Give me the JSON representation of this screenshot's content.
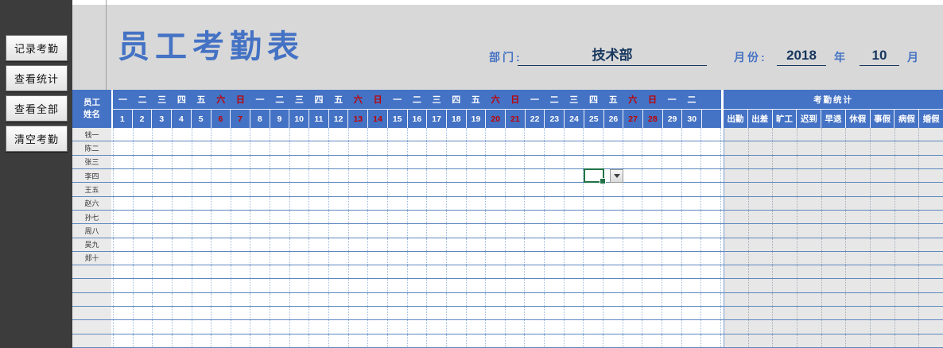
{
  "sidebar": {
    "buttons": [
      {
        "label": "记录考勤"
      },
      {
        "label": "查看统计"
      },
      {
        "label": "查看全部"
      },
      {
        "label": "清空考勤"
      }
    ]
  },
  "header": {
    "title": "员工考勤表",
    "department_label": "部门:",
    "department_value": "技术部",
    "month_label": "月份:",
    "year_value": "2018",
    "year_suffix": "年",
    "month_value": "10",
    "month_suffix": "月"
  },
  "table": {
    "name_header": "员工\n姓名",
    "stats_header": "考勤统计",
    "stat_columns": [
      "出勤",
      "出差",
      "旷工",
      "迟到",
      "早退",
      "休假",
      "事假",
      "病假",
      "婚假"
    ],
    "days": [
      {
        "d": 1,
        "w": "一",
        "weekend": false
      },
      {
        "d": 2,
        "w": "二",
        "weekend": false
      },
      {
        "d": 3,
        "w": "三",
        "weekend": false
      },
      {
        "d": 4,
        "w": "四",
        "weekend": false
      },
      {
        "d": 5,
        "w": "五",
        "weekend": false
      },
      {
        "d": 6,
        "w": "六",
        "weekend": true
      },
      {
        "d": 7,
        "w": "日",
        "weekend": true
      },
      {
        "d": 8,
        "w": "一",
        "weekend": false
      },
      {
        "d": 9,
        "w": "二",
        "weekend": false
      },
      {
        "d": 10,
        "w": "三",
        "weekend": false
      },
      {
        "d": 11,
        "w": "四",
        "weekend": false
      },
      {
        "d": 12,
        "w": "五",
        "weekend": false
      },
      {
        "d": 13,
        "w": "六",
        "weekend": true
      },
      {
        "d": 14,
        "w": "日",
        "weekend": true
      },
      {
        "d": 15,
        "w": "一",
        "weekend": false
      },
      {
        "d": 16,
        "w": "二",
        "weekend": false
      },
      {
        "d": 17,
        "w": "三",
        "weekend": false
      },
      {
        "d": 18,
        "w": "四",
        "weekend": false
      },
      {
        "d": 19,
        "w": "五",
        "weekend": false
      },
      {
        "d": 20,
        "w": "六",
        "weekend": true
      },
      {
        "d": 21,
        "w": "日",
        "weekend": true
      },
      {
        "d": 22,
        "w": "一",
        "weekend": false
      },
      {
        "d": 23,
        "w": "二",
        "weekend": false
      },
      {
        "d": 24,
        "w": "三",
        "weekend": false
      },
      {
        "d": 25,
        "w": "四",
        "weekend": false
      },
      {
        "d": 26,
        "w": "五",
        "weekend": false
      },
      {
        "d": 27,
        "w": "六",
        "weekend": true
      },
      {
        "d": 28,
        "w": "日",
        "weekend": true
      },
      {
        "d": 29,
        "w": "一",
        "weekend": false
      },
      {
        "d": 30,
        "w": "二",
        "weekend": false
      }
    ],
    "blank_day_columns": 1,
    "employees": [
      "钱一",
      "陈二",
      "张三",
      "李四",
      "王五",
      "赵六",
      "孙七",
      "周八",
      "吴九",
      "郑十"
    ],
    "empty_rows": 6
  },
  "selection": {
    "employee": "李四",
    "day": 25
  },
  "colors": {
    "accent_blue": "#4472C4",
    "weekend_red": "#C00000",
    "selection_green": "#217346",
    "sidebar_bg": "#3C3C3C",
    "header_gray": "#D8D8D8",
    "grid_line_blue": "#5E88BE"
  }
}
